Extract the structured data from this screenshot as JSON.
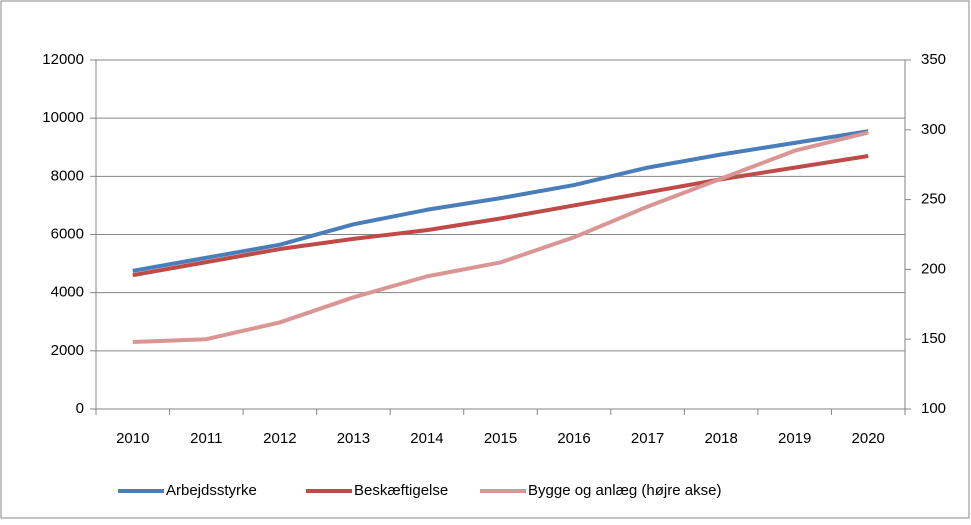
{
  "chart_data": {
    "type": "line",
    "categories": [
      "2010",
      "2011",
      "2012",
      "2013",
      "2014",
      "2015",
      "2016",
      "2017",
      "2018",
      "2019",
      "2020"
    ],
    "series": [
      {
        "name": "Arbejdsstyrke",
        "color": "#4a7ebb",
        "values": [
          4750,
          5200,
          5650,
          6350,
          6850,
          7250,
          7700,
          8300,
          8750,
          9150,
          9550
        ]
      },
      {
        "name": "Beskæftigelse",
        "color": "#be4b48",
        "values": [
          4600,
          5050,
          5500,
          5850,
          6150,
          6550,
          7000,
          7450,
          7900,
          8300,
          8700
        ]
      },
      {
        "name": "Bygge og anlæg (højre akse)",
        "color": "#d99694",
        "axis": "y2",
        "values": [
          148,
          150,
          162,
          180,
          195,
          205,
          223,
          245,
          265,
          285,
          298
        ]
      }
    ],
    "ylim": [
      0,
      12000
    ],
    "yticks": [
      0,
      2000,
      4000,
      6000,
      8000,
      10000,
      12000
    ],
    "y2lim": [
      100,
      350
    ],
    "y2ticks": [
      100,
      150,
      200,
      250,
      300,
      350
    ],
    "grid": true,
    "legend": "bottom"
  }
}
